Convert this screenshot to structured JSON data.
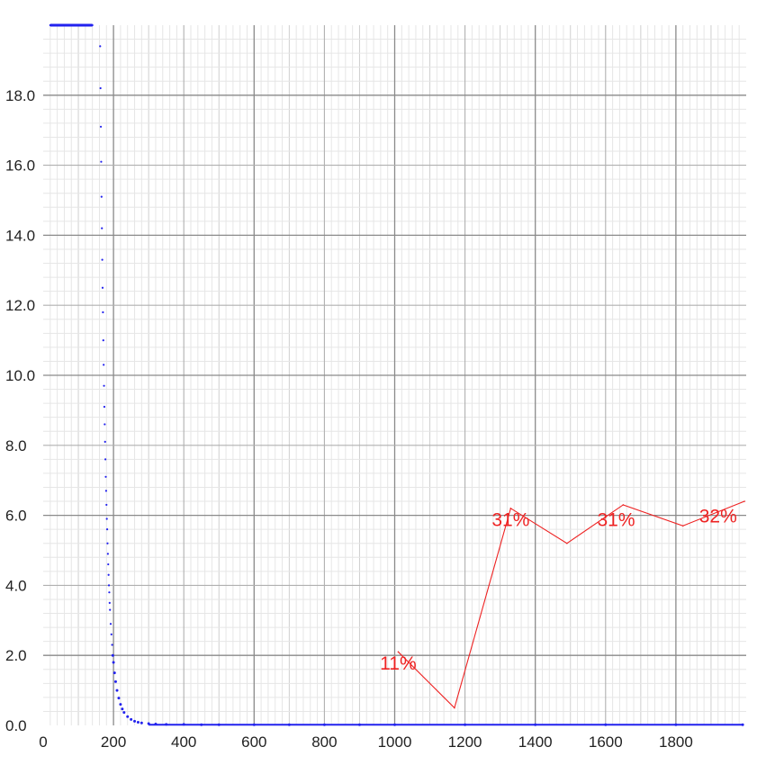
{
  "chart_data": {
    "type": "line",
    "title": "",
    "xlabel": "",
    "ylabel": "",
    "xlim": [
      0,
      2000
    ],
    "ylim": [
      0,
      20
    ],
    "grid": true,
    "xticks": [
      0,
      200,
      400,
      600,
      800,
      1000,
      1200,
      1400,
      1600,
      1800
    ],
    "yticks": [
      0,
      2,
      4,
      6,
      8,
      10,
      12,
      14,
      16,
      18
    ],
    "xtick_labels": [
      "0",
      "200",
      "400",
      "600",
      "800",
      "1000",
      "1200",
      "1400",
      "1600",
      "1800"
    ],
    "ytick_labels": [
      "0.0",
      "2.0",
      "4.0",
      "6.0",
      "8.0",
      "10.0",
      "12.0",
      "14.0",
      "16.0",
      "18.0"
    ],
    "series": [
      {
        "color": "#2222ee",
        "style": "dots",
        "x": [
          20,
          60,
          100,
          140,
          162,
          163,
          164,
          165,
          166,
          167,
          168,
          169,
          170,
          171,
          172,
          173,
          174,
          175,
          176,
          177,
          178,
          179,
          180,
          181,
          182,
          183,
          184,
          185,
          186,
          187,
          188,
          189,
          190,
          192,
          194,
          196,
          198,
          200,
          203,
          206,
          210,
          215,
          220,
          225,
          230,
          240,
          250,
          260,
          270,
          280,
          300,
          320,
          350,
          400,
          450,
          500,
          600,
          700,
          800,
          900,
          1000,
          1200,
          1400,
          1600,
          1800,
          1990
        ],
        "y": [
          20,
          20,
          20,
          20,
          19.4,
          18.2,
          17.1,
          16.1,
          15.1,
          14.2,
          13.3,
          12.5,
          11.8,
          11.0,
          10.3,
          9.7,
          9.1,
          8.6,
          8.1,
          7.6,
          7.1,
          6.7,
          6.3,
          5.9,
          5.6,
          5.2,
          4.9,
          4.6,
          4.3,
          4.0,
          3.8,
          3.5,
          3.3,
          2.9,
          2.6,
          2.3,
          2.0,
          1.8,
          1.5,
          1.25,
          1.0,
          0.78,
          0.6,
          0.47,
          0.37,
          0.25,
          0.17,
          0.12,
          0.09,
          0.07,
          0.05,
          0.04,
          0.03,
          0.03,
          0.02,
          0.02,
          0.02,
          0.02,
          0.02,
          0.02,
          0.02,
          0.02,
          0.02,
          0.02,
          0.02,
          0.02
        ]
      },
      {
        "color": "#ee2222",
        "style": "line",
        "x": [
          1010,
          1170,
          1330,
          1490,
          1650,
          1820,
          1995
        ],
        "y": [
          2.1,
          0.5,
          6.2,
          5.2,
          6.3,
          5.7,
          6.4
        ]
      }
    ],
    "annotations": [
      {
        "text": "11%",
        "x": 1010,
        "y": 1.8,
        "color": "#ee2222"
      },
      {
        "text": "31%",
        "x": 1330,
        "y": 5.9,
        "color": "#ee2222"
      },
      {
        "text": "31%",
        "x": 1630,
        "y": 5.9,
        "color": "#ee2222"
      },
      {
        "text": "32%",
        "x": 1920,
        "y": 6.0,
        "color": "#ee2222"
      }
    ]
  }
}
